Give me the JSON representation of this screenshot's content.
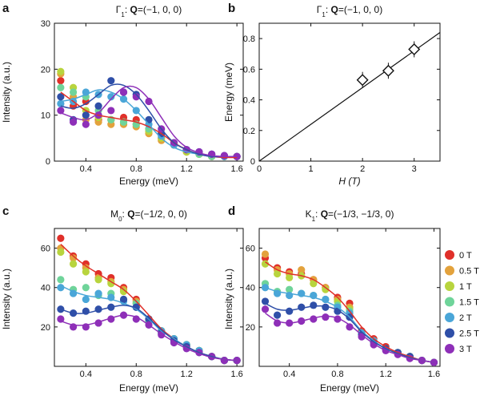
{
  "legend": {
    "items": [
      {
        "label": "0 T",
        "color": "#e0302a"
      },
      {
        "label": "0.5 T",
        "color": "#e3a23c"
      },
      {
        "label": "1 T",
        "color": "#b8d43e"
      },
      {
        "label": "1.5 T",
        "color": "#6fd49a"
      },
      {
        "label": "2 T",
        "color": "#4aa6d8"
      },
      {
        "label": "2.5 T",
        "color": "#2f4fa8"
      },
      {
        "label": "3 T",
        "color": "#8e2fb8"
      }
    ]
  },
  "chart_data": [
    {
      "panel": "a",
      "type": "scatter",
      "title_parts": [
        "Γ",
        "1",
        ": ",
        "Q",
        "=(−1, 0, 0)"
      ],
      "xlabel": "Energy (meV)",
      "ylabel": "Intensity (a.u.)",
      "xlim": [
        0.15,
        1.65
      ],
      "ylim": [
        0,
        30
      ],
      "xticks": [
        0.4,
        0.8,
        1.2,
        1.6
      ],
      "xtick_labels": [
        "0.4",
        "0.8",
        "1.2",
        "1.6"
      ],
      "yticks": [
        0,
        10,
        20,
        30
      ],
      "ytick_labels": [
        "0",
        "10",
        "20",
        "30"
      ],
      "x": [
        0.2,
        0.3,
        0.4,
        0.5,
        0.6,
        0.7,
        0.8,
        0.9,
        1.0,
        1.1,
        1.2,
        1.3,
        1.4,
        1.5,
        1.6
      ],
      "series": [
        {
          "legend_index": 0,
          "values": [
            17.5,
            12,
            13,
            9,
            9,
            9.5,
            9,
            7,
            5,
            3.5,
            2,
            1.5,
            1,
            1,
            1
          ]
        },
        {
          "legend_index": 1,
          "values": [
            19,
            14,
            9,
            8.5,
            8,
            8,
            7.5,
            6,
            4.5,
            3.5,
            2,
            1.5,
            1,
            1,
            1
          ]
        },
        {
          "legend_index": 2,
          "values": [
            19.5,
            16,
            11,
            9.5,
            9,
            8.5,
            8,
            6.5,
            5,
            4,
            2,
            1.5,
            1,
            1,
            1
          ]
        },
        {
          "legend_index": 3,
          "values": [
            16,
            15,
            14,
            11,
            9,
            8.5,
            8,
            7,
            6,
            4,
            2.5,
            1.5,
            1,
            1,
            1
          ]
        },
        {
          "legend_index": 4,
          "values": [
            12.5,
            13,
            15,
            14.5,
            14,
            13.5,
            11,
            8,
            5.5,
            3.5,
            2.5,
            2,
            1.5,
            1,
            1
          ]
        },
        {
          "legend_index": 5,
          "values": [
            14,
            9,
            10,
            12,
            17.5,
            15,
            14.5,
            9,
            6,
            4,
            2.5,
            2,
            1.5,
            1.2,
            1
          ]
        },
        {
          "legend_index": 6,
          "values": [
            11,
            8.5,
            8,
            10,
            11,
            15,
            14,
            13,
            7,
            4,
            2.5,
            2,
            1.5,
            1.2,
            1
          ]
        }
      ],
      "fits": [
        {
          "legend_index": 0,
          "values": [
            15,
            13,
            11,
            10,
            9.5,
            9,
            8.5,
            7.5,
            6,
            4,
            2.5,
            1.5,
            1,
            0.8,
            0.8
          ]
        },
        {
          "legend_index": 4,
          "values": [
            13,
            13.5,
            14.5,
            15.5,
            15,
            13.5,
            11,
            8,
            5,
            3,
            2,
            1.5,
            1,
            1,
            1
          ]
        },
        {
          "legend_index": 5,
          "values": [
            12,
            11.5,
            12.5,
            14.5,
            16.5,
            16.5,
            14.5,
            11,
            7,
            4,
            2.5,
            1.5,
            1,
            1,
            1
          ]
        },
        {
          "legend_index": 6,
          "values": [
            10.5,
            9.5,
            9,
            10.5,
            13.5,
            16,
            16,
            13.5,
            9.5,
            5.5,
            3,
            1.8,
            1.2,
            1,
            1
          ]
        }
      ]
    },
    {
      "panel": "b",
      "type": "scatter",
      "title_parts": [
        "Γ",
        "1",
        ": ",
        "Q",
        "=(−1, 0, 0)"
      ],
      "xlabel": "H (T)",
      "ylabel": "Energy (meV)",
      "xlim": [
        0,
        3.5
      ],
      "ylim": [
        0,
        0.9
      ],
      "xticks": [
        0,
        1,
        2,
        3
      ],
      "xtick_labels": [
        "0",
        "1",
        "2",
        "3"
      ],
      "yticks": [
        0,
        0.2,
        0.4,
        0.6,
        0.8
      ],
      "ytick_labels": [
        "0",
        "0.2",
        "0.4",
        "0.6",
        "0.8"
      ],
      "points": [
        {
          "x": 2.0,
          "y": 0.53
        },
        {
          "x": 2.5,
          "y": 0.59
        },
        {
          "x": 3.0,
          "y": 0.73
        }
      ],
      "fit_line": {
        "x": [
          0,
          3.5
        ],
        "y": [
          0,
          0.84
        ]
      }
    },
    {
      "panel": "c",
      "type": "scatter",
      "title_parts": [
        "M",
        "0",
        ": ",
        "Q",
        "=(−1/2, 0, 0)"
      ],
      "xlabel": "Energy (meV)",
      "ylabel": "Intensity (a.u.)",
      "xlim": [
        0.15,
        1.65
      ],
      "ylim": [
        0,
        70
      ],
      "xticks": [
        0.4,
        0.8,
        1.2,
        1.6
      ],
      "xtick_labels": [
        "0.4",
        "0.8",
        "1.2",
        "1.6"
      ],
      "yticks": [
        20,
        40,
        60
      ],
      "ytick_labels": [
        "20",
        "40",
        "60"
      ],
      "x": [
        0.2,
        0.3,
        0.4,
        0.5,
        0.6,
        0.7,
        0.8,
        0.9,
        1.0,
        1.1,
        1.2,
        1.3,
        1.4,
        1.5,
        1.6
      ],
      "series": [
        {
          "legend_index": 0,
          "values": [
            65,
            56,
            52,
            47,
            45,
            40,
            34,
            24,
            18,
            14,
            11,
            8,
            5,
            3,
            3
          ]
        },
        {
          "legend_index": 1,
          "values": [
            60,
            55,
            50,
            45,
            43,
            39,
            33,
            24,
            18,
            14,
            11,
            8,
            5,
            3,
            3
          ]
        },
        {
          "legend_index": 2,
          "values": [
            58,
            52,
            48,
            44,
            42,
            38,
            32,
            23,
            18,
            14,
            11,
            8,
            5,
            3,
            3
          ]
        },
        {
          "legend_index": 3,
          "values": [
            44,
            39,
            40,
            36,
            37,
            34,
            32,
            23,
            18,
            14,
            11,
            8,
            5,
            3,
            3
          ]
        },
        {
          "legend_index": 4,
          "values": [
            40,
            37,
            34,
            37,
            35,
            33,
            30,
            24,
            18,
            14,
            11,
            8,
            5,
            3,
            3
          ]
        },
        {
          "legend_index": 5,
          "values": [
            29,
            27,
            28,
            29,
            30,
            34,
            30,
            24,
            17,
            13,
            10,
            7,
            5,
            3,
            3
          ]
        },
        {
          "legend_index": 6,
          "values": [
            24,
            20,
            20,
            22,
            24,
            26,
            24,
            21,
            16,
            12,
            9,
            7,
            5,
            3,
            3
          ]
        }
      ],
      "fits": [
        {
          "legend_index": 0,
          "values": [
            62,
            56,
            51,
            47,
            43,
            39,
            33,
            26,
            19,
            14,
            10,
            7,
            5,
            3.5,
            3
          ]
        },
        {
          "legend_index": 4,
          "values": [
            41,
            38,
            36,
            35,
            34,
            32,
            29,
            24,
            18,
            14,
            10,
            7,
            5,
            3.5,
            3
          ]
        },
        {
          "legend_index": 5,
          "values": [
            29,
            27,
            27,
            28.5,
            30,
            31,
            29.5,
            24.5,
            18.5,
            13.5,
            10,
            7,
            5,
            3.5,
            3
          ]
        },
        {
          "legend_index": 6,
          "values": [
            23,
            21,
            21,
            22.5,
            24.5,
            26,
            25,
            21,
            16.5,
            12.5,
            9,
            6.5,
            4.5,
            3.5,
            3
          ]
        }
      ]
    },
    {
      "panel": "d",
      "type": "scatter",
      "title_parts": [
        "K",
        "1",
        ": ",
        "Q",
        "=(−1/3, −1/3, 0)"
      ],
      "xlabel": "Energy (meV)",
      "ylabel": "Intensity (a.u.)",
      "xlim": [
        0.15,
        1.65
      ],
      "ylim": [
        0,
        70
      ],
      "xticks": [
        0.4,
        0.8,
        1.2,
        1.6
      ],
      "xtick_labels": [
        "0.4",
        "0.8",
        "1.2",
        "1.6"
      ],
      "yticks": [
        20,
        40,
        60
      ],
      "ytick_labels": [
        "20",
        "40",
        "60"
      ],
      "x": [
        0.2,
        0.3,
        0.4,
        0.5,
        0.6,
        0.7,
        0.8,
        0.9,
        1.0,
        1.1,
        1.2,
        1.3,
        1.4,
        1.5,
        1.6
      ],
      "series": [
        {
          "legend_index": 0,
          "values": [
            55,
            50,
            48,
            47,
            44,
            40,
            35,
            32,
            18,
            14,
            10,
            7,
            5,
            3,
            2
          ]
        },
        {
          "legend_index": 1,
          "values": [
            57,
            49,
            47,
            49,
            44,
            40,
            34,
            30,
            17,
            13,
            9,
            7,
            5,
            3,
            2
          ]
        },
        {
          "legend_index": 2,
          "values": [
            52,
            47,
            45,
            46,
            42,
            39,
            33,
            29,
            17,
            13,
            9,
            7,
            5,
            3,
            2
          ]
        },
        {
          "legend_index": 3,
          "values": [
            42,
            38,
            39,
            37,
            36,
            34,
            31,
            28,
            17,
            13,
            9,
            7,
            5,
            3,
            2
          ]
        },
        {
          "legend_index": 4,
          "values": [
            40,
            37,
            36,
            37,
            36,
            34,
            30,
            27,
            17,
            13,
            9,
            7,
            5,
            3,
            2
          ]
        },
        {
          "legend_index": 5,
          "values": [
            33,
            26,
            28,
            30,
            31,
            30,
            28,
            25,
            16,
            12,
            9,
            7,
            5,
            3,
            2
          ]
        },
        {
          "legend_index": 6,
          "values": [
            29,
            22,
            22,
            23,
            24,
            25,
            24,
            20,
            15,
            11,
            8,
            6,
            4,
            3,
            2
          ]
        }
      ],
      "fits": [
        {
          "legend_index": 0,
          "values": [
            53,
            49,
            47,
            46,
            44,
            40,
            35,
            28,
            20,
            14,
            10,
            7,
            5,
            3,
            2
          ]
        },
        {
          "legend_index": 4,
          "values": [
            40,
            38,
            37,
            36,
            35,
            33,
            30,
            25,
            18,
            13,
            9,
            6.5,
            4.5,
            3,
            2
          ]
        },
        {
          "legend_index": 5,
          "values": [
            32,
            29,
            28.5,
            29.5,
            30.5,
            30.5,
            28.5,
            24,
            17.5,
            12.5,
            9,
            6.5,
            4.5,
            3,
            2
          ]
        },
        {
          "legend_index": 6,
          "values": [
            27,
            23,
            22,
            23,
            24.5,
            25.5,
            24.5,
            21,
            16,
            11.5,
            8,
            6,
            4,
            3,
            2
          ]
        }
      ]
    }
  ]
}
